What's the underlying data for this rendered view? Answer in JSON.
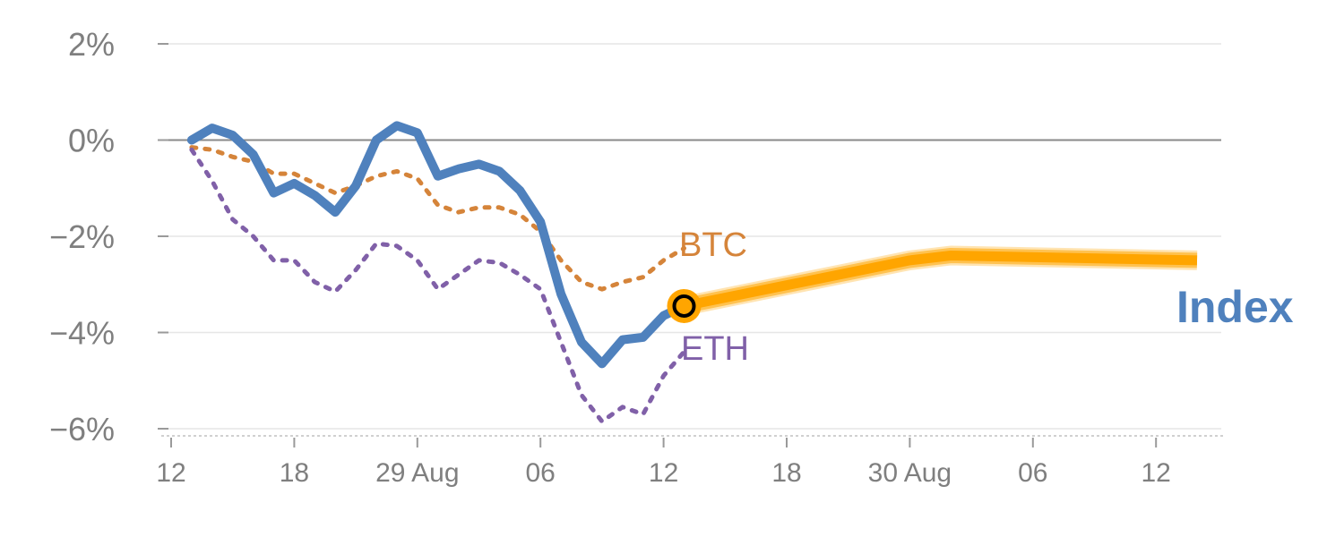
{
  "chart_data": {
    "type": "line",
    "title": "",
    "xlabel": "",
    "ylabel": "",
    "ylim": [
      -6,
      2
    ],
    "y_ticks": [
      {
        "value": 2,
        "label": "2%"
      },
      {
        "value": 0,
        "label": "0%"
      },
      {
        "value": -2,
        "label": "−2%"
      },
      {
        "value": -4,
        "label": "−4%"
      },
      {
        "value": -6,
        "label": "−6%"
      }
    ],
    "x_ticks": [
      {
        "index": 0,
        "label": "12"
      },
      {
        "index": 6,
        "label": "18"
      },
      {
        "index": 12,
        "label": "29 Aug"
      },
      {
        "index": 18,
        "label": "06"
      },
      {
        "index": 24,
        "label": "12"
      },
      {
        "index": 30,
        "label": "18"
      },
      {
        "index": 36,
        "label": "30 Aug"
      },
      {
        "index": 42,
        "label": "06"
      },
      {
        "index": 48,
        "label": "12"
      }
    ],
    "x_range": [
      -0.3,
      51
    ],
    "series": [
      {
        "name": "Index",
        "label": "Index",
        "color": "#4f81bd",
        "style": "solid",
        "x": [
          1,
          2,
          3,
          4,
          5,
          6,
          7,
          8,
          9,
          10,
          11,
          12,
          13,
          14,
          15,
          16,
          17,
          18,
          19,
          20,
          21,
          22,
          23,
          24,
          25
        ],
        "values": [
          0,
          0.25,
          0.1,
          -0.3,
          -1.1,
          -0.9,
          -1.15,
          -1.5,
          -0.95,
          0,
          0.3,
          0.15,
          -0.75,
          -0.6,
          -0.5,
          -0.65,
          -1.05,
          -1.7,
          -3.2,
          -4.2,
          -4.65,
          -4.15,
          -4.1,
          -3.65,
          -3.45
        ]
      },
      {
        "name": "BTC",
        "label": "BTC",
        "color": "#d5843a",
        "style": "dotted",
        "x": [
          1,
          2,
          3,
          4,
          5,
          6,
          7,
          8,
          9,
          10,
          11,
          12,
          13,
          14,
          15,
          16,
          17,
          18,
          19,
          20,
          21,
          22,
          23,
          24,
          25
        ],
        "values": [
          -0.15,
          -0.2,
          -0.35,
          -0.45,
          -0.7,
          -0.7,
          -0.9,
          -1.1,
          -0.95,
          -0.75,
          -0.65,
          -0.8,
          -1.35,
          -1.5,
          -1.4,
          -1.4,
          -1.55,
          -1.9,
          -2.5,
          -2.95,
          -3.1,
          -2.95,
          -2.85,
          -2.5,
          -2.25
        ]
      },
      {
        "name": "ETH",
        "label": "ETH",
        "color": "#8060a8",
        "style": "dotted",
        "x": [
          1,
          2,
          3,
          4,
          5,
          6,
          7,
          8,
          9,
          10,
          11,
          12,
          13,
          14,
          15,
          16,
          17,
          18,
          19,
          20,
          21,
          22,
          23,
          24,
          25
        ],
        "values": [
          -0.2,
          -0.85,
          -1.65,
          -2,
          -2.5,
          -2.5,
          -2.95,
          -3.15,
          -2.7,
          -2.15,
          -2.2,
          -2.5,
          -3.1,
          -2.8,
          -2.5,
          -2.55,
          -2.8,
          -3.1,
          -4.2,
          -5.3,
          -5.85,
          -5.55,
          -5.7,
          -4.9,
          -4.4
        ]
      },
      {
        "name": "Index forecast",
        "label": "",
        "color": "#ffa500",
        "style": "thick-band",
        "x": [
          25,
          36,
          38,
          50
        ],
        "values": [
          -3.45,
          -2.5,
          -2.4,
          -2.5
        ]
      }
    ],
    "current_point": {
      "x": 25,
      "value": -3.45,
      "color": "#ffa500"
    }
  }
}
